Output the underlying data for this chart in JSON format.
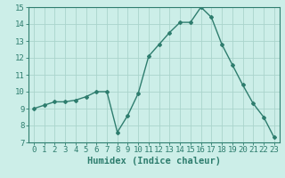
{
  "title": "",
  "xlabel": "Humidex (Indice chaleur)",
  "ylabel": "",
  "x": [
    0,
    1,
    2,
    3,
    4,
    5,
    6,
    7,
    8,
    9,
    10,
    11,
    12,
    13,
    14,
    15,
    16,
    17,
    18,
    19,
    20,
    21,
    22,
    23
  ],
  "y": [
    9.0,
    9.2,
    9.4,
    9.4,
    9.5,
    9.7,
    10.0,
    10.0,
    7.6,
    8.6,
    9.9,
    12.1,
    12.8,
    13.5,
    14.1,
    14.1,
    15.0,
    14.4,
    12.8,
    11.6,
    10.4,
    9.3,
    8.5,
    7.3
  ],
  "line_color": "#2e7d6e",
  "marker": "D",
  "markersize": 2.0,
  "linewidth": 1.0,
  "bg_color": "#cceee8",
  "grid_color": "#aad4cc",
  "tick_label_fontsize": 6.5,
  "axis_label_fontsize": 7.5,
  "ylim": [
    7,
    15
  ],
  "yticks": [
    7,
    8,
    9,
    10,
    11,
    12,
    13,
    14,
    15
  ],
  "xticks": [
    0,
    1,
    2,
    3,
    4,
    5,
    6,
    7,
    8,
    9,
    10,
    11,
    12,
    13,
    14,
    15,
    16,
    17,
    18,
    19,
    20,
    21,
    22,
    23
  ],
  "xlim": [
    -0.5,
    23.5
  ]
}
